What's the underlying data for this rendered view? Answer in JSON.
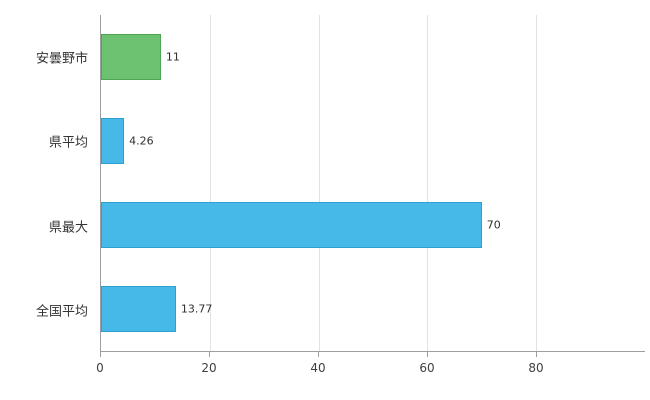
{
  "chart_data": {
    "type": "bar",
    "orientation": "horizontal",
    "title": "",
    "xlabel": "",
    "ylabel": "",
    "categories": [
      "安曇野市",
      "県平均",
      "県最大",
      "全国平均"
    ],
    "values": [
      11,
      4.26,
      70,
      13.77
    ],
    "value_labels": [
      "11",
      "4.26",
      "70",
      "13.77"
    ],
    "bar_fill_colors": [
      "#6cc271",
      "#47b9e8",
      "#47b9e8",
      "#47b9e8"
    ],
    "bar_border_colors": [
      "#4ea654",
      "#2d9fd0",
      "#2d9fd0",
      "#2d9fd0"
    ],
    "x_ticks": [
      0,
      20,
      40,
      60,
      80
    ],
    "x_axis_max": 100,
    "grid": true,
    "legend": "none",
    "background_color": "#ffffff",
    "axis_color": "#9e9e9e",
    "gridline_color": "#e2e2e2"
  }
}
